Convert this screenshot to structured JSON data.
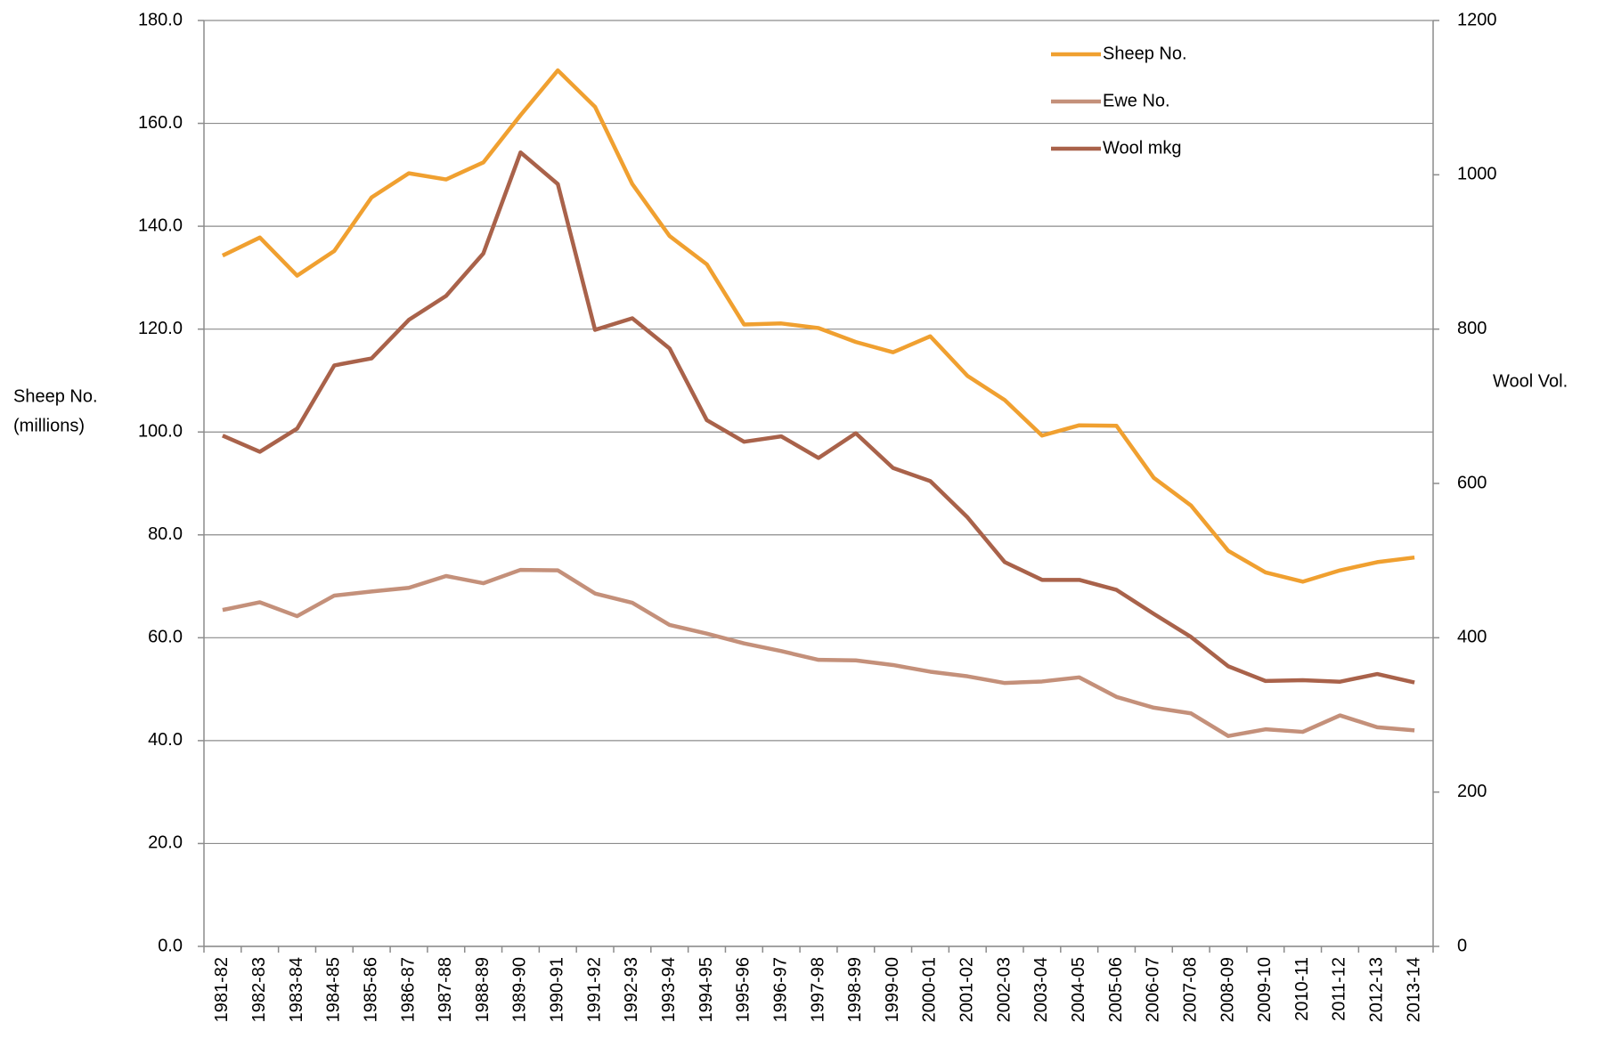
{
  "chart_data": {
    "type": "line",
    "y_label": [
      "Sheep No.",
      "(millions)"
    ],
    "y2_label": "Wool Vol.",
    "categories": [
      "1981-82",
      "1982-83",
      "1983-84",
      "1984-85",
      "1985-86",
      "1986-87",
      "1987-88",
      "1988-89",
      "1989-90",
      "1990-91",
      "1991-92",
      "1992-93",
      "1993-94",
      "1994-95",
      "1995-96",
      "1996-97",
      "1997-98",
      "1998-99",
      "1999-00",
      "2000-01",
      "2001-02",
      "2002-03",
      "2003-04",
      "2004-05",
      "2005-06",
      "2006-07",
      "2007-08",
      "2008-09",
      "2009-10",
      "2010-11",
      "2011-12",
      "2012-13",
      "2013-14"
    ],
    "series": [
      {
        "name": "Sheep No.",
        "color": "#f0a030",
        "values": [
          134.3,
          137.8,
          130.4,
          135.2,
          145.6,
          150.3,
          149.1,
          152.4,
          161.6,
          170.3,
          163.2,
          148.2,
          138.1,
          132.6,
          120.9,
          121.1,
          120.2,
          117.5,
          115.5,
          118.6,
          110.9,
          106.2,
          99.3,
          101.3,
          101.2,
          91.1,
          85.7,
          76.9,
          72.7,
          70.9,
          73.1,
          74.7,
          75.6
        ]
      },
      {
        "name": "Ewe No.",
        "color": "#c4907a",
        "values": [
          65.4,
          66.9,
          64.2,
          68.2,
          69.0,
          69.7,
          72.0,
          70.6,
          73.2,
          73.1,
          68.6,
          66.8,
          62.5,
          60.8,
          58.9,
          57.4,
          55.7,
          55.6,
          54.7,
          53.4,
          52.5,
          51.2,
          51.5,
          52.3,
          48.5,
          46.4,
          45.3,
          40.9,
          42.2,
          41.7,
          44.9,
          42.6,
          42.0
        ]
      },
      {
        "name": "Wool mkg",
        "color": "#a9624a",
        "axis": "y2",
        "values": [
          662,
          641,
          671,
          753,
          762,
          812,
          843,
          898,
          1029,
          988,
          799,
          814,
          775,
          682,
          654,
          661,
          633,
          665,
          620,
          603,
          556,
          498,
          475,
          475,
          462,
          431,
          401,
          363,
          344,
          345,
          343,
          353,
          342
        ]
      }
    ],
    "ylim": [
      0,
      180
    ],
    "yticks": [
      {
        "value": 0,
        "label": "0.0"
      },
      {
        "value": 20,
        "label": "20.0"
      },
      {
        "value": 40,
        "label": "40.0"
      },
      {
        "value": 60,
        "label": "60.0"
      },
      {
        "value": 80,
        "label": "80.0"
      },
      {
        "value": 100,
        "label": "100.0"
      },
      {
        "value": 120,
        "label": "120.0"
      },
      {
        "value": 140,
        "label": "140.0"
      },
      {
        "value": 160,
        "label": "160.0"
      },
      {
        "value": 180,
        "label": "180.0"
      }
    ],
    "y2lim": [
      0,
      1200
    ],
    "y2ticks": [
      0,
      200,
      400,
      600,
      800,
      1000,
      1200
    ],
    "grid": true,
    "legend": "top-right"
  }
}
